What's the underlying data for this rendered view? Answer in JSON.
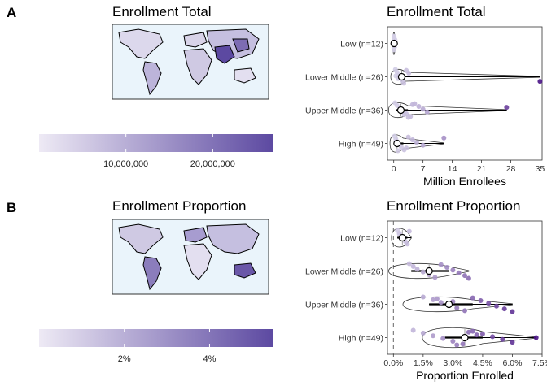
{
  "panels": [
    {
      "letter": "A",
      "map": {
        "title": "Enrollment Total",
        "legend_ticks": [
          {
            "value": 10000000,
            "label": "10,000,000"
          },
          {
            "value": 20000000,
            "label": "20,000,000"
          }
        ],
        "legend_range": [
          0,
          27000000
        ],
        "color_low": "#eeeaf5",
        "color_high": "#5c49a1"
      },
      "chart": {
        "title": "Enrollment Total",
        "type": "scatter",
        "xlabel": "Million Enrollees",
        "xlim": [
          -1.5,
          35.5
        ],
        "xticks": [
          {
            "value": 0,
            "label": "0"
          },
          {
            "value": 7,
            "label": "7"
          },
          {
            "value": 14,
            "label": "14"
          },
          {
            "value": 21,
            "label": "21"
          },
          {
            "value": 28,
            "label": "28"
          },
          {
            "value": 35,
            "label": "35"
          }
        ],
        "reference_line": null,
        "groups": [
          {
            "label": "Low (n=12)",
            "median": 0.1,
            "box": [
              0.0,
              0.3
            ],
            "max": 0.6,
            "violin_halfwidth": 0.9,
            "points": [
              0.05,
              0.08,
              0.1,
              0.15,
              0.2,
              0.05,
              0.12,
              0.3
            ]
          },
          {
            "label": "Lower Middle (n=26)",
            "median": 1.9,
            "box": [
              0.6,
              2.8
            ],
            "max": 35.0,
            "violin_halfwidth": 0.6,
            "points": [
              0.4,
              0.8,
              1.2,
              1.6,
              2.0,
              2.4,
              3.0,
              3.6,
              0.5,
              1.0,
              35.0
            ]
          },
          {
            "label": "Upper Middle (n=36)",
            "median": 1.7,
            "box": [
              0.5,
              3.4
            ],
            "max": 27.0,
            "violin_halfwidth": 0.6,
            "points": [
              0.3,
              0.8,
              1.5,
              2.0,
              3.0,
              4.0,
              5.0,
              6.0,
              7.0,
              8.0,
              2.5,
              3.5,
              4.5,
              27.0
            ]
          },
          {
            "label": "High (n=49)",
            "median": 0.8,
            "box": [
              0.3,
              2.3
            ],
            "max": 12.0,
            "violin_halfwidth": 0.7,
            "points": [
              0.2,
              0.5,
              0.8,
              1.2,
              1.8,
              2.5,
              3.5,
              4.5,
              5.5,
              7.0,
              3.0,
              1.0,
              12.0
            ]
          }
        ]
      }
    },
    {
      "letter": "B",
      "map": {
        "title": "Enrollment Proportion",
        "legend_ticks": [
          {
            "value": 2,
            "label": "2%"
          },
          {
            "value": 4,
            "label": "4%"
          }
        ],
        "legend_range": [
          0,
          5.5
        ],
        "color_low": "#eeeaf5",
        "color_high": "#5c49a1"
      },
      "chart": {
        "title": "Enrollment Proportion",
        "type": "scatter",
        "xlabel": "Proportion Enrolled",
        "xlim": [
          -0.3,
          7.5
        ],
        "xticks": [
          {
            "value": 0,
            "label": "0.0%"
          },
          {
            "value": 1.5,
            "label": "1.5%"
          },
          {
            "value": 3,
            "label": "3.0%"
          },
          {
            "value": 4.5,
            "label": "4.5%"
          },
          {
            "value": 6,
            "label": "6.0%"
          },
          {
            "value": 7.5,
            "label": "7.5%"
          }
        ],
        "reference_line": 0,
        "groups": [
          {
            "label": "Low (n=12)",
            "median": 0.45,
            "box": [
              0.2,
              0.7
            ],
            "max": 0.9,
            "violin_halfwidth": 0.75,
            "points": [
              0.2,
              0.3,
              0.4,
              0.5,
              0.6,
              0.7,
              0.8,
              0.3,
              0.5
            ]
          },
          {
            "label": "Lower Middle (n=26)",
            "median": 1.8,
            "box": [
              0.9,
              2.8
            ],
            "max": 3.8,
            "violin_halfwidth": 0.6,
            "points": [
              0.8,
              1.0,
              1.2,
              1.5,
              1.8,
              2.1,
              2.4,
              2.7,
              3.0,
              3.3,
              3.6,
              3.8
            ]
          },
          {
            "label": "Upper Middle (n=36)",
            "median": 2.8,
            "box": [
              1.8,
              4.0
            ],
            "max": 6.0,
            "violin_halfwidth": 0.6,
            "points": [
              1.5,
              2.0,
              2.4,
              2.8,
              3.2,
              3.6,
              4.0,
              4.4,
              4.8,
              5.2,
              5.6,
              6.0,
              2.2,
              3.0
            ]
          },
          {
            "label": "High (n=49)",
            "median": 3.6,
            "box": [
              2.6,
              4.5
            ],
            "max": 7.2,
            "violin_halfwidth": 0.8,
            "points": [
              1.0,
              1.5,
              2.0,
              2.5,
              3.0,
              3.5,
              4.0,
              4.5,
              5.0,
              5.5,
              6.0,
              3.2,
              3.8,
              4.2,
              7.2
            ]
          }
        ]
      }
    }
  ]
}
